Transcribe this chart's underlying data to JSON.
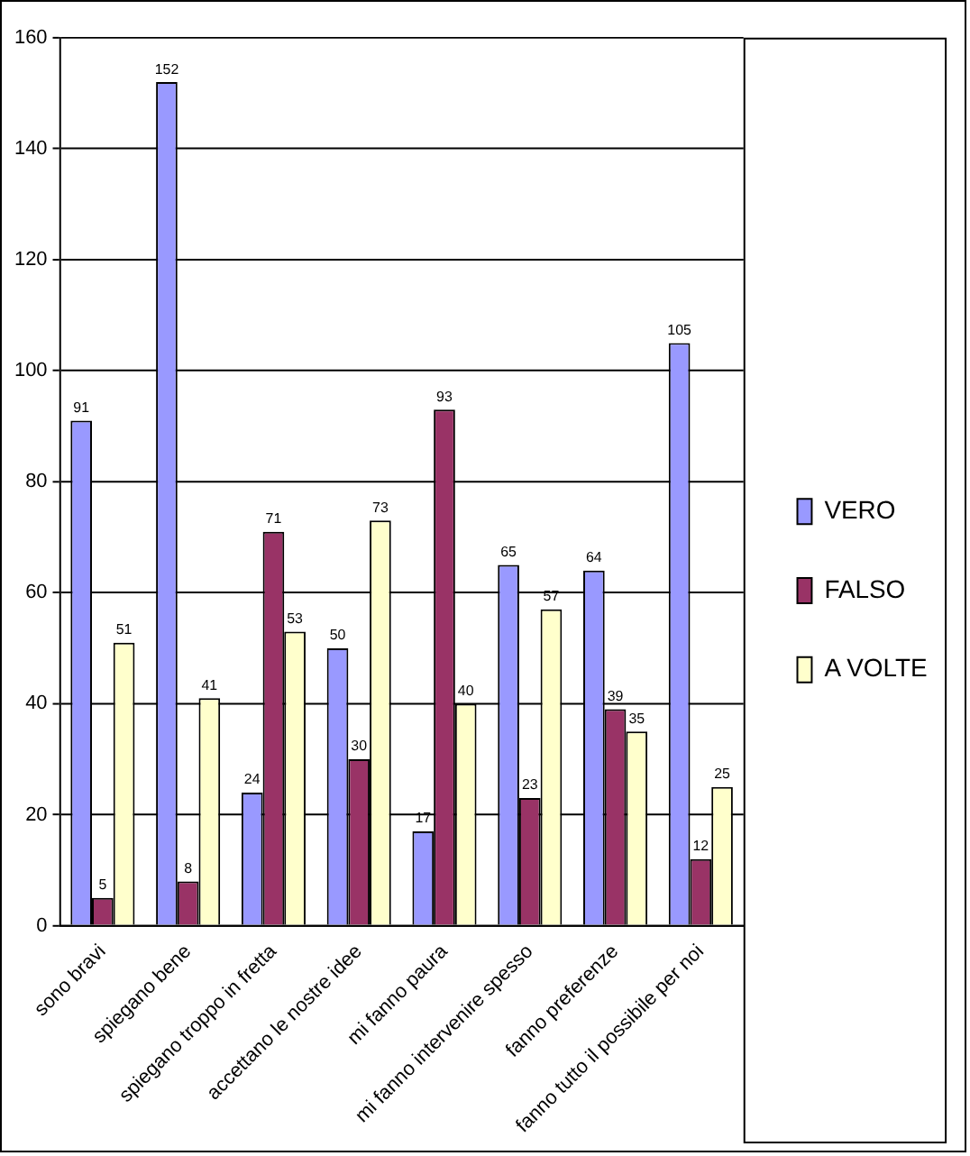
{
  "chart_data": {
    "type": "bar",
    "categories": [
      "sono bravi",
      "spiegano bene",
      "spiegano troppo in fretta",
      "accettano le nostre idee",
      "mi fanno paura",
      "mi fanno intervenire spesso",
      "fanno preferenze",
      "fanno tutto il possibile per noi"
    ],
    "series": [
      {
        "name": "VERO",
        "color": "#9999ff",
        "values": [
          91,
          152,
          24,
          50,
          17,
          65,
          64,
          105
        ]
      },
      {
        "name": "FALSO",
        "color": "#993366",
        "values": [
          5,
          8,
          71,
          30,
          93,
          23,
          39,
          12
        ]
      },
      {
        "name": "A VOLTE",
        "color": "#ffffcc",
        "values": [
          51,
          41,
          53,
          73,
          40,
          57,
          35,
          25
        ]
      }
    ],
    "ylim": [
      0,
      160
    ],
    "yticks": [
      0,
      20,
      40,
      60,
      80,
      100,
      120,
      140,
      160
    ],
    "grid": "y",
    "legend": "right",
    "data_labels": true
  }
}
